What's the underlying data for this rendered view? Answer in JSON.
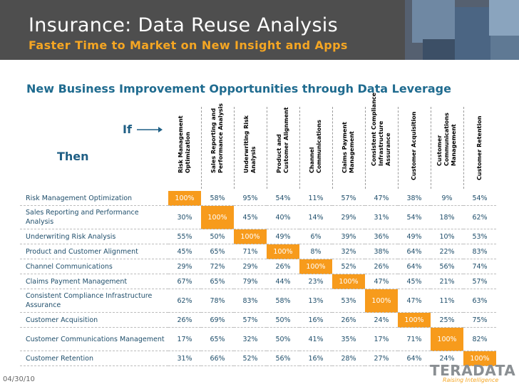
{
  "slide": {
    "title": "Insurance: Data Reuse Analysis",
    "subtitle": "Faster Time to Market on New Insight and Apps",
    "heading": "New Business Improvement Opportunities through Data Leverage",
    "if_label": "If",
    "then_label": "Then",
    "date": "04/30/10"
  },
  "columns": [
    "Risk Management\nOptimization",
    "Sales Reporting and\nPerformance Analysis",
    "Underwriting Risk\nAnalysis",
    "Product and\nCustomer Alignment",
    "Channel\nCommunications",
    "Claims Payment\nManagement",
    "Consistent Compliance\nInfrastructure\nAssurance",
    "Customer Acquisition",
    "Customer\nCommunications\nManagement",
    "Customer Retention"
  ],
  "rows": [
    {
      "label": "Risk Management Optimization",
      "values": [
        "100%",
        "58%",
        "95%",
        "54%",
        "11%",
        "57%",
        "47%",
        "38%",
        "9%",
        "54%"
      ]
    },
    {
      "label": "Sales Reporting and Performance Analysis",
      "values": [
        "30%",
        "100%",
        "45%",
        "40%",
        "14%",
        "29%",
        "31%",
        "54%",
        "18%",
        "62%"
      ]
    },
    {
      "label": "Underwriting Risk Analysis",
      "values": [
        "55%",
        "50%",
        "100%",
        "49%",
        "6%",
        "39%",
        "36%",
        "49%",
        "10%",
        "53%"
      ]
    },
    {
      "label": "Product and Customer Alignment",
      "values": [
        "45%",
        "65%",
        "71%",
        "100%",
        "8%",
        "32%",
        "38%",
        "64%",
        "22%",
        "83%"
      ]
    },
    {
      "label": "Channel Communications",
      "values": [
        "29%",
        "72%",
        "29%",
        "26%",
        "100%",
        "52%",
        "26%",
        "64%",
        "56%",
        "74%"
      ]
    },
    {
      "label": "Claims Payment Management",
      "values": [
        "67%",
        "65%",
        "79%",
        "44%",
        "23%",
        "100%",
        "47%",
        "45%",
        "21%",
        "57%"
      ]
    },
    {
      "label": "Consistent Compliance Infrastructure Assurance",
      "values": [
        "62%",
        "78%",
        "83%",
        "58%",
        "13%",
        "53%",
        "100%",
        "47%",
        "11%",
        "63%"
      ]
    },
    {
      "label": "Customer Acquisition",
      "values": [
        "26%",
        "69%",
        "57%",
        "50%",
        "16%",
        "26%",
        "24%",
        "100%",
        "25%",
        "75%"
      ]
    },
    {
      "label": "Customer Communications Management",
      "values": [
        "17%",
        "65%",
        "32%",
        "50%",
        "41%",
        "35%",
        "17%",
        "71%",
        "100%",
        "82%"
      ]
    },
    {
      "label": "Customer Retention",
      "values": [
        "31%",
        "66%",
        "52%",
        "56%",
        "16%",
        "28%",
        "27%",
        "64%",
        "24%",
        "100%"
      ]
    }
  ],
  "logo": {
    "name": "TERADATA",
    "tagline": "Raising Intelligence"
  },
  "colors": {
    "header_bg": "#4e4e4e",
    "subtitle": "#f5a623",
    "heading": "#1f6b8f",
    "highlight": "#f79b1c",
    "cell_text": "#1f4e6b"
  }
}
